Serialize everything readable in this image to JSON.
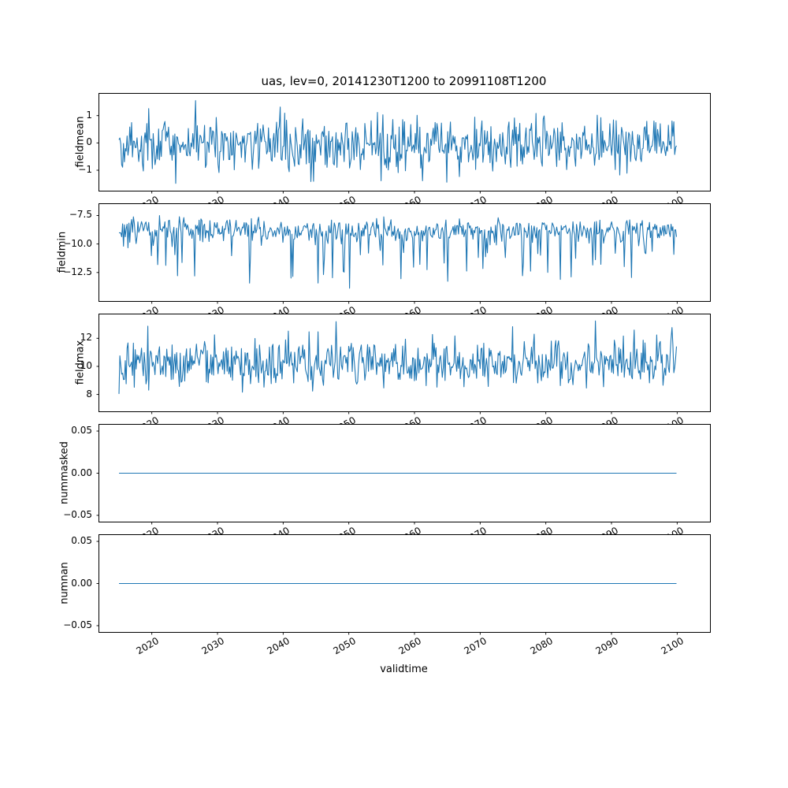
{
  "figure": {
    "background": "#ffffff",
    "axes_edge_color": "#000000",
    "text_color": "#000000"
  },
  "chart_data": {
    "type": "line",
    "title": "uas, lev=0, 20141230T1200 to 20991108T1200",
    "xlabel": "validtime",
    "x_tick_labels": [
      "2020",
      "2030",
      "2040",
      "2050",
      "2060",
      "2070",
      "2080",
      "2090",
      "2100"
    ],
    "x_tick_values": [
      2020,
      2030,
      2040,
      2050,
      2060,
      2070,
      2080,
      2090,
      2100
    ],
    "xlim": [
      2012,
      2105
    ],
    "x_start": 2015.0,
    "x_end": 2099.9,
    "n_points": 620,
    "line_color": "#1f77b4",
    "grid": false,
    "legend": "none",
    "panels": [
      {
        "name": "fieldmean",
        "ylabel": "fieldmean",
        "ytick_labels": [
          "1",
          "0",
          "−1"
        ],
        "ytick_values": [
          1,
          0,
          -1
        ],
        "ylim": [
          -1.75,
          1.8
        ],
        "series": {
          "kind": "noise",
          "seed": 42,
          "mean": -0.08,
          "std": 0.5,
          "spike_prob": 0,
          "spike_amp": 0,
          "clip": [
            -1.55,
            1.55
          ]
        }
      },
      {
        "name": "fieldmin",
        "ylabel": "fieldmin",
        "ytick_labels": [
          "−7.5",
          "−10.0",
          "−12.5"
        ],
        "ytick_values": [
          -7.5,
          -10.0,
          -12.5
        ],
        "ylim": [
          -15.0,
          -6.5
        ],
        "series": {
          "kind": "noise",
          "seed": 7,
          "mean": -8.8,
          "std": 0.5,
          "spike_prob": 0.1,
          "spike_amp": -4.5,
          "clip": [
            -14.4,
            -7.0
          ]
        }
      },
      {
        "name": "fieldmax",
        "ylabel": "fieldmax",
        "ytick_labels": [
          "12",
          "10",
          "8"
        ],
        "ytick_values": [
          12,
          10,
          8
        ],
        "ylim": [
          6.8,
          13.7
        ],
        "series": {
          "kind": "noise",
          "seed": 13,
          "mean": 10.2,
          "std": 0.8,
          "spike_prob": 0.06,
          "spike_amp": 2.0,
          "clip": [
            7.3,
            13.5
          ]
        }
      },
      {
        "name": "nummasked",
        "ylabel": "nummasked",
        "ytick_labels": [
          "0.05",
          "0.00",
          "−0.05"
        ],
        "ytick_values": [
          0.05,
          0.0,
          -0.05
        ],
        "ylim": [
          -0.0575,
          0.0575
        ],
        "series": {
          "kind": "constant",
          "value": 0.0
        }
      },
      {
        "name": "numnan",
        "ylabel": "numnan",
        "ytick_labels": [
          "0.05",
          "0.00",
          "−0.05"
        ],
        "ytick_values": [
          0.05,
          0.0,
          -0.05
        ],
        "ylim": [
          -0.0575,
          0.0575
        ],
        "series": {
          "kind": "constant",
          "value": 0.0
        }
      }
    ]
  }
}
